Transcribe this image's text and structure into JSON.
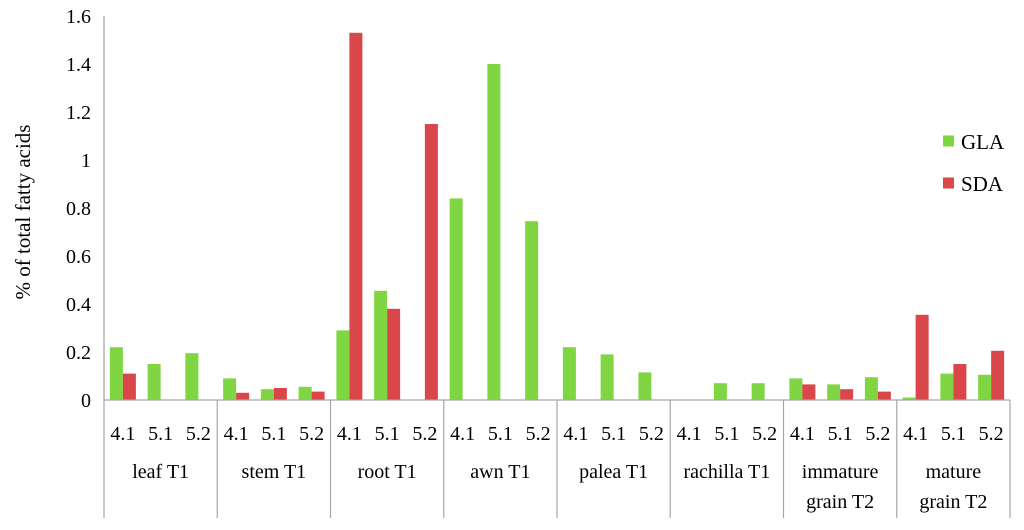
{
  "chart_data": {
    "type": "bar",
    "title": "",
    "xlabel": "",
    "ylabel": "% of total fatty acids",
    "ylim": [
      0,
      1.6
    ],
    "yticks": [
      0,
      0.2,
      0.4,
      0.6,
      0.8,
      1,
      1.2,
      1.4,
      1.6
    ],
    "ytick_labels": [
      "0",
      "0.2",
      "0.4",
      "0.6",
      "0.8",
      "1",
      "1.2",
      "1.4",
      "1.6"
    ],
    "grid": false,
    "legend_position": "right",
    "groups": [
      {
        "label_lines": [
          "leaf T1"
        ]
      },
      {
        "label_lines": [
          "stem T1"
        ]
      },
      {
        "label_lines": [
          "root T1"
        ]
      },
      {
        "label_lines": [
          "awn T1"
        ]
      },
      {
        "label_lines": [
          "palea T1"
        ]
      },
      {
        "label_lines": [
          "rachilla T1"
        ]
      },
      {
        "label_lines": [
          "immature",
          "grain T2"
        ]
      },
      {
        "label_lines": [
          "mature",
          "grain T2"
        ]
      }
    ],
    "categories": [
      "4.1",
      "5.1",
      "5.2",
      "4.1",
      "5.1",
      "5.2",
      "4.1",
      "5.1",
      "5.2",
      "4.1",
      "5.1",
      "5.2",
      "4.1",
      "5.1",
      "5.2",
      "4.1",
      "5.1",
      "5.2",
      "4.1",
      "5.1",
      "5.2",
      "4.1",
      "5.1",
      "5.2"
    ],
    "series": [
      {
        "name": "GLA",
        "color": "#7fd642",
        "values": [
          0.22,
          0.15,
          0.195,
          0.09,
          0.045,
          0.055,
          0.29,
          0.455,
          0,
          0.84,
          1.4,
          0.745,
          0.22,
          0.19,
          0.115,
          0,
          0.07,
          0.07,
          0.09,
          0.065,
          0.095,
          0.01,
          0.11,
          0.105
        ]
      },
      {
        "name": "SDA",
        "color": "#d9474a",
        "values": [
          0.11,
          0,
          0,
          0.03,
          0.05,
          0.035,
          1.53,
          0.38,
          1.15,
          0,
          0,
          0,
          0,
          0,
          0,
          0,
          0,
          0,
          0.065,
          0.045,
          0.035,
          0.355,
          0.15,
          0.205
        ]
      }
    ]
  }
}
